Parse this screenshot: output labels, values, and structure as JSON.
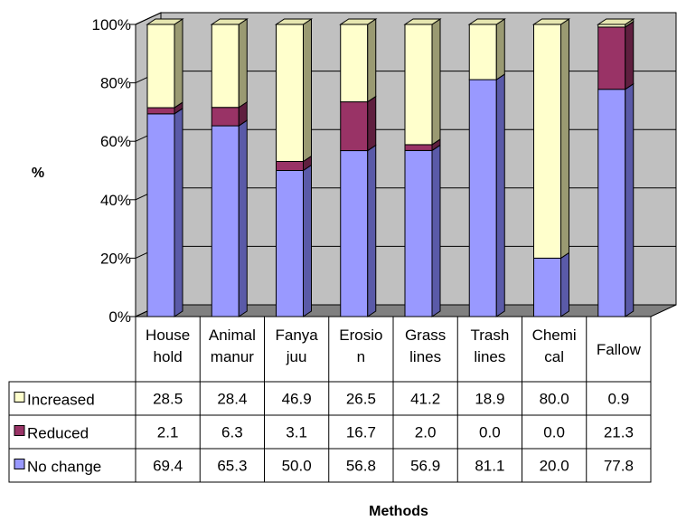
{
  "chart_data": {
    "type": "bar",
    "stacked": true,
    "normalized_percent": true,
    "three_d": true,
    "categories": [
      [
        "House",
        "hold"
      ],
      [
        "Animal",
        "manur"
      ],
      [
        "Fanya",
        "juu"
      ],
      [
        "Erosio",
        "n"
      ],
      [
        "Grass",
        "lines"
      ],
      [
        "Trash",
        "lines"
      ],
      [
        "Chemi",
        "cal"
      ],
      [
        "Fallow"
      ]
    ],
    "series": [
      {
        "name": "No change",
        "color": "#9999ff",
        "side": "#5a5aa8",
        "top": "#c3c3ff",
        "values": [
          69.4,
          65.3,
          50.0,
          56.8,
          56.9,
          81.1,
          20.0,
          77.8
        ],
        "labels": [
          "69.4",
          "65.3",
          "50.0",
          "56.8",
          "56.9",
          "81.1",
          "20.0",
          "77.8"
        ]
      },
      {
        "name": "Reduced",
        "color": "#993366",
        "side": "#5f1f3f",
        "top": "#b35c88",
        "values": [
          2.1,
          6.3,
          3.1,
          16.7,
          2.0,
          0.0,
          0.0,
          21.3
        ],
        "labels": [
          "2.1",
          "6.3",
          "3.1",
          "16.7",
          "2.0",
          "0.0",
          "0.0",
          "21.3"
        ]
      },
      {
        "name": "Increased",
        "color": "#ffffcc",
        "side": "#9a9a72",
        "top": "#e6e6b0",
        "values": [
          28.5,
          28.4,
          46.9,
          26.5,
          41.2,
          18.9,
          80.0,
          0.9
        ],
        "labels": [
          "28.5",
          "28.4",
          "46.9",
          "26.5",
          "41.2",
          "18.9",
          "80.0",
          "0.9"
        ]
      }
    ],
    "table_order": [
      "Increased",
      "Reduced",
      "No change"
    ],
    "yticks": [
      "0%",
      "20%",
      "40%",
      "60%",
      "80%",
      "100%"
    ],
    "ylim": [
      0,
      100
    ],
    "ylabel": "%",
    "xlabel": "Methods",
    "grid": true,
    "wall_color": "#c0c0c0",
    "floor_color": "#808080",
    "legend": "data-table"
  }
}
